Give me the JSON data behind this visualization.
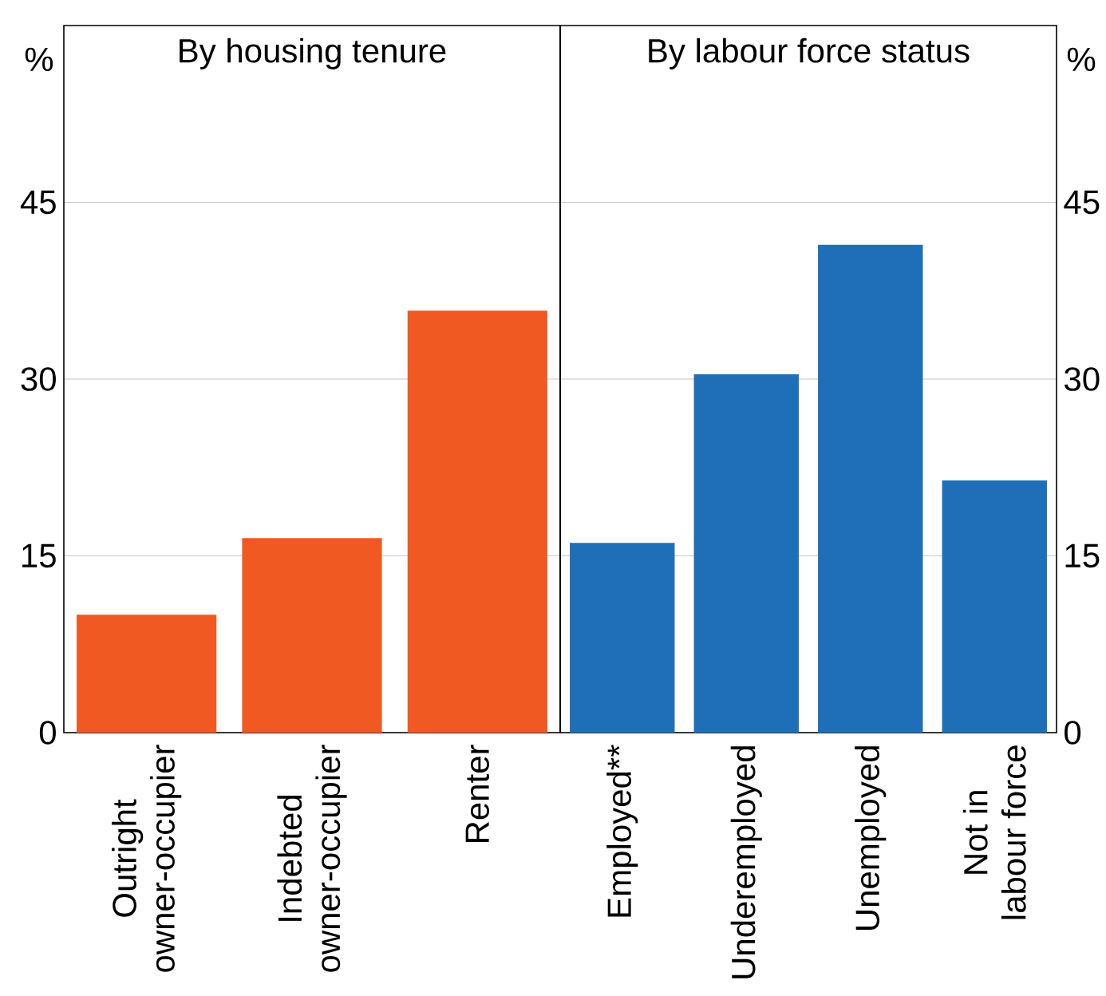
{
  "chart_data": [
    {
      "type": "bar",
      "title": "By housing tenure",
      "ylabel": "%",
      "categories": [
        "Outright\nowner-occupier",
        "Indebted\nowner-occupier",
        "Renter"
      ],
      "values": [
        10.0,
        16.5,
        35.8
      ],
      "color": "#f05a22",
      "ylim": [
        0,
        60
      ],
      "yticks": [
        0,
        15,
        30,
        45
      ],
      "grid": "y"
    },
    {
      "type": "bar",
      "title": "By labour force status",
      "ylabel": "%",
      "categories": [
        "Employed**",
        "Underemployed",
        "Unemployed",
        "Not in\nlabour force"
      ],
      "values": [
        16.1,
        30.4,
        41.4,
        21.4
      ],
      "color": "#1f6fb8",
      "ylim": [
        0,
        60
      ],
      "yticks": [
        0,
        15,
        30,
        45
      ],
      "grid": "y"
    }
  ]
}
